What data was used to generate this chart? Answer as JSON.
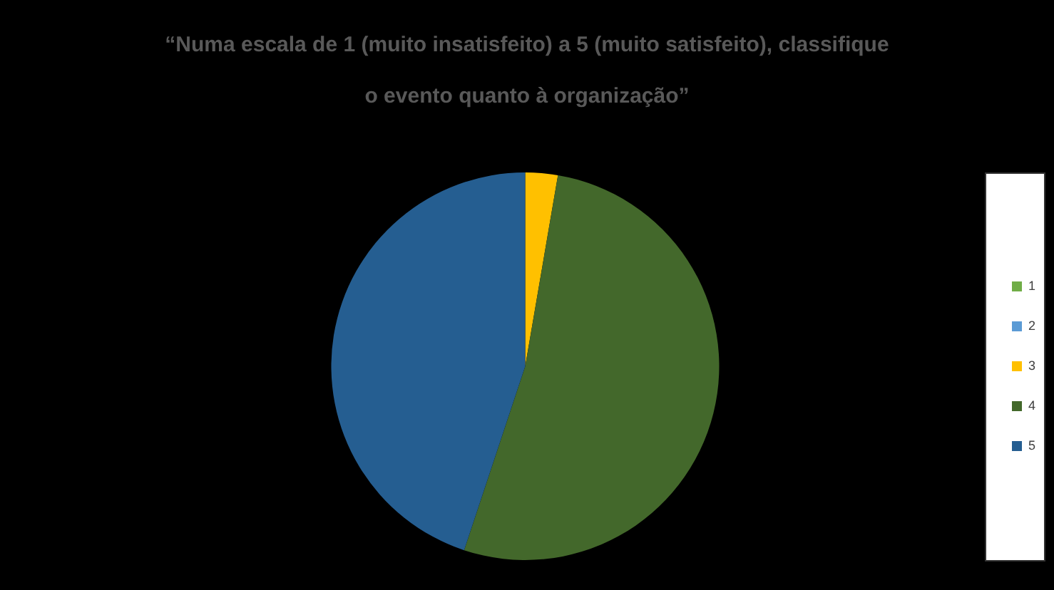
{
  "chart_data": {
    "type": "pie",
    "title": "“Numa escala de 1 (muito insatisfeito) a 5 (muito satisfeito), classifique o evento quanto à organização”",
    "categories": [
      "1",
      "2",
      "3",
      "4",
      "5"
    ],
    "values": [
      0,
      0,
      2.7,
      52.4,
      44.9
    ],
    "colors": [
      "#70ad47",
      "#5b9bd5",
      "#ffc000",
      "#43682b",
      "#255e91"
    ],
    "legend": "right"
  }
}
